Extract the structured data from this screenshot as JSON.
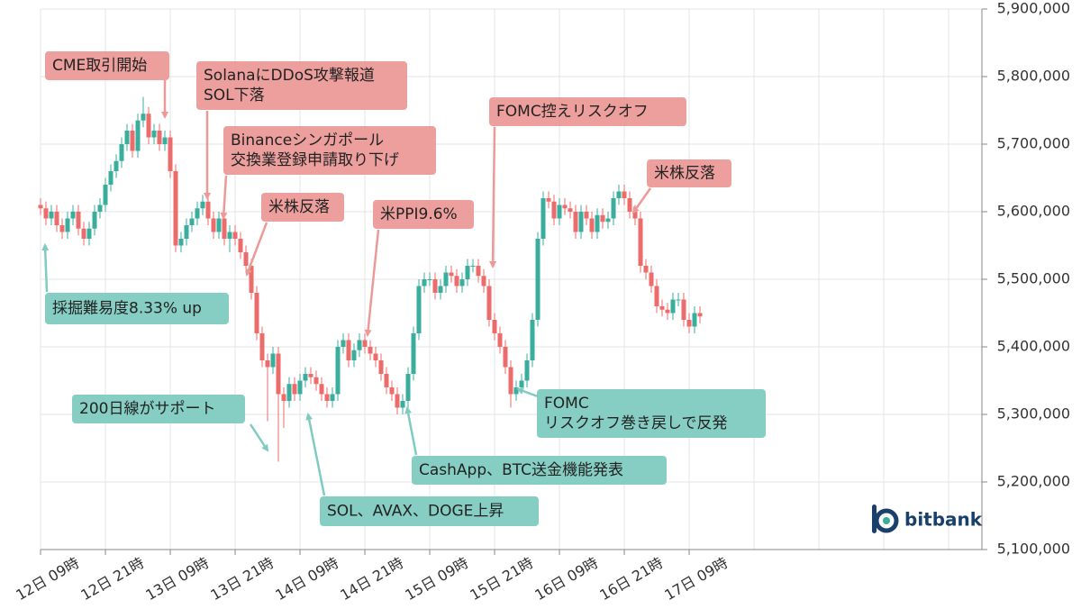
{
  "chart_data": {
    "type": "candlestick",
    "categories": [
      "12日 09時",
      null,
      null,
      null,
      null,
      null,
      null,
      null,
      null,
      null,
      null,
      null,
      "12日 21時",
      null,
      null,
      null,
      null,
      null,
      null,
      null,
      null,
      null,
      null,
      null,
      "13日 09時",
      null,
      null,
      null,
      null,
      null,
      null,
      null,
      null,
      null,
      null,
      null,
      "13日 21時",
      null,
      null,
      null,
      null,
      null,
      null,
      null,
      null,
      null,
      null,
      null,
      "14日 09時",
      null,
      null,
      null,
      null,
      null,
      null,
      null,
      null,
      null,
      null,
      null,
      "14日 21時",
      null,
      null,
      null,
      null,
      null,
      null,
      null,
      null,
      null,
      null,
      null,
      "15日 09時",
      null,
      null,
      null,
      null,
      null,
      null,
      null,
      null,
      null,
      null,
      null,
      "15日 21時",
      null,
      null,
      null,
      null,
      null,
      null,
      null,
      null,
      null,
      null,
      null,
      "16日 09時",
      null,
      null,
      null,
      null,
      null,
      null,
      null,
      null,
      null,
      null,
      null,
      "16日 21時",
      null,
      null,
      null,
      null,
      null,
      null,
      null,
      null,
      null,
      null,
      null,
      "17日 09時",
      null,
      null
    ],
    "open": [
      5610000,
      5605000,
      5590000,
      5600000,
      5580000,
      5570000,
      5590000,
      5600000,
      5575000,
      5560000,
      5575000,
      5600000,
      5610000,
      5640000,
      5660000,
      5675000,
      5700000,
      5720000,
      5690000,
      5735000,
      5745000,
      5710000,
      5720000,
      5700000,
      5710000,
      5660000,
      5550000,
      5560000,
      5580000,
      5590000,
      5605000,
      5615000,
      5590000,
      5570000,
      5590000,
      5560000,
      5570000,
      5560000,
      5540000,
      5520000,
      5480000,
      5420000,
      5380000,
      5370000,
      5390000,
      5330000,
      5320000,
      5345000,
      5330000,
      5350000,
      5360000,
      5355000,
      5345000,
      5330000,
      5320000,
      5330000,
      5400000,
      5410000,
      5380000,
      5395000,
      5410000,
      5400000,
      5390000,
      5380000,
      5360000,
      5340000,
      5330000,
      5310000,
      5320000,
      5360000,
      5420000,
      5490000,
      5500000,
      5500000,
      5480000,
      5490000,
      5510000,
      5505000,
      5490000,
      5500000,
      5520000,
      5520000,
      5505000,
      5490000,
      5440000,
      5420000,
      5400000,
      5370000,
      5330000,
      5340000,
      5350000,
      5380000,
      5440000,
      5560000,
      5620000,
      5615000,
      5590000,
      5610000,
      5605000,
      5600000,
      5570000,
      5600000,
      5590000,
      5570000,
      5595000,
      5585000,
      5590000,
      5620000,
      5630000,
      5620000,
      5600000,
      5590000,
      5520000,
      5510000,
      5490000,
      5460000,
      5455000,
      5450000,
      5470000,
      5470000,
      5440000,
      5430000,
      5450000
    ],
    "high": [
      5620000,
      5615000,
      5610000,
      5610000,
      5590000,
      5600000,
      5610000,
      5610000,
      5585000,
      5585000,
      5610000,
      5620000,
      5650000,
      5670000,
      5685000,
      5710000,
      5730000,
      5730000,
      5745000,
      5770000,
      5755000,
      5730000,
      5730000,
      5720000,
      5720000,
      5670000,
      5570000,
      5590000,
      5600000,
      5615000,
      5625000,
      5625000,
      5600000,
      5600000,
      5600000,
      5580000,
      5580000,
      5570000,
      5550000,
      5530000,
      5490000,
      5430000,
      5390000,
      5400000,
      5400000,
      5340000,
      5355000,
      5355000,
      5360000,
      5370000,
      5370000,
      5365000,
      5355000,
      5340000,
      5340000,
      5410000,
      5420000,
      5420000,
      5405000,
      5420000,
      5420000,
      5410000,
      5400000,
      5390000,
      5370000,
      5350000,
      5340000,
      5330000,
      5370000,
      5430000,
      5500000,
      5510000,
      5510000,
      5510000,
      5500000,
      5520000,
      5520000,
      5515000,
      5510000,
      5530000,
      5530000,
      5530000,
      5515000,
      5500000,
      5450000,
      5430000,
      5410000,
      5380000,
      5350000,
      5360000,
      5390000,
      5450000,
      5570000,
      5630000,
      5630000,
      5625000,
      5620000,
      5620000,
      5615000,
      5610000,
      5610000,
      5610000,
      5600000,
      5605000,
      5605000,
      5600000,
      5630000,
      5640000,
      5640000,
      5630000,
      5610000,
      5600000,
      5530000,
      5520000,
      5500000,
      5470000,
      5465000,
      5480000,
      5480000,
      5480000,
      5450000,
      5460000,
      5460000
    ],
    "low": [
      5595000,
      5580000,
      5580000,
      5570000,
      5560000,
      5560000,
      5580000,
      5565000,
      5550000,
      5550000,
      5565000,
      5590000,
      5600000,
      5630000,
      5650000,
      5665000,
      5690000,
      5680000,
      5680000,
      5725000,
      5700000,
      5700000,
      5690000,
      5690000,
      5650000,
      5540000,
      5540000,
      5550000,
      5570000,
      5580000,
      5595000,
      5580000,
      5560000,
      5560000,
      5550000,
      5540000,
      5550000,
      5530000,
      5510000,
      5470000,
      5410000,
      5370000,
      5290000,
      5360000,
      5230000,
      5280000,
      5310000,
      5320000,
      5320000,
      5340000,
      5345000,
      5335000,
      5320000,
      5310000,
      5310000,
      5320000,
      5390000,
      5370000,
      5370000,
      5385000,
      5390000,
      5380000,
      5370000,
      5350000,
      5330000,
      5320000,
      5300000,
      5300000,
      5310000,
      5350000,
      5410000,
      5480000,
      5490000,
      5470000,
      5470000,
      5480000,
      5495000,
      5480000,
      5480000,
      5490000,
      5510000,
      5495000,
      5480000,
      5430000,
      5410000,
      5390000,
      5360000,
      5310000,
      5320000,
      5330000,
      5340000,
      5370000,
      5430000,
      5550000,
      5605000,
      5580000,
      5580000,
      5595000,
      5590000,
      5560000,
      5560000,
      5580000,
      5560000,
      5560000,
      5575000,
      5575000,
      5580000,
      5610000,
      5610000,
      5590000,
      5580000,
      5510000,
      5500000,
      5480000,
      5450000,
      5445000,
      5440000,
      5440000,
      5460000,
      5430000,
      5420000,
      5420000,
      5435000
    ],
    "close": [
      5605000,
      5590000,
      5600000,
      5580000,
      5570000,
      5590000,
      5600000,
      5575000,
      5560000,
      5575000,
      5600000,
      5610000,
      5640000,
      5660000,
      5675000,
      5700000,
      5720000,
      5690000,
      5735000,
      5745000,
      5710000,
      5720000,
      5700000,
      5710000,
      5660000,
      5550000,
      5560000,
      5580000,
      5590000,
      5605000,
      5615000,
      5590000,
      5570000,
      5590000,
      5560000,
      5570000,
      5560000,
      5540000,
      5520000,
      5480000,
      5420000,
      5380000,
      5370000,
      5390000,
      5330000,
      5320000,
      5345000,
      5330000,
      5350000,
      5360000,
      5355000,
      5345000,
      5330000,
      5320000,
      5330000,
      5400000,
      5410000,
      5380000,
      5395000,
      5410000,
      5400000,
      5390000,
      5380000,
      5360000,
      5340000,
      5330000,
      5310000,
      5320000,
      5360000,
      5420000,
      5490000,
      5500000,
      5500000,
      5480000,
      5490000,
      5510000,
      5505000,
      5490000,
      5500000,
      5520000,
      5520000,
      5505000,
      5490000,
      5440000,
      5420000,
      5400000,
      5370000,
      5330000,
      5340000,
      5350000,
      5380000,
      5440000,
      5560000,
      5620000,
      5615000,
      5590000,
      5610000,
      5605000,
      5600000,
      5570000,
      5600000,
      5590000,
      5570000,
      5595000,
      5585000,
      5590000,
      5620000,
      5630000,
      5620000,
      5600000,
      5590000,
      5520000,
      5510000,
      5490000,
      5460000,
      5455000,
      5450000,
      5470000,
      5470000,
      5440000,
      5430000,
      5450000,
      5445000
    ],
    "up_color": "#3aae9c",
    "down_color": "#ec6b6b",
    "ylim": [
      5100000,
      5900000
    ],
    "yticks": [
      {
        "value": 5100000,
        "label": "5,100,000"
      },
      {
        "value": 5200000,
        "label": "5,200,000"
      },
      {
        "value": 5300000,
        "label": "5,300,000"
      },
      {
        "value": 5400000,
        "label": "5,400,000"
      },
      {
        "value": 5500000,
        "label": "5,500,000"
      },
      {
        "value": 5600000,
        "label": "5,600,000"
      },
      {
        "value": 5700000,
        "label": "5,700,000"
      },
      {
        "value": 5800000,
        "label": "5,800,000"
      },
      {
        "value": 5900000,
        "label": "5,900,000"
      }
    ],
    "grid": true,
    "annotations": [
      {
        "lines": [
          "CME取引開始"
        ],
        "color": "#eb9a98"
      },
      {
        "lines": [
          "SolanaにDDoS攻撃報道",
          "SOL下落"
        ],
        "color": "#eb9a98"
      },
      {
        "lines": [
          "Binanceシンガポール",
          "交換業登録申請取り下げ"
        ],
        "color": "#eb9a98"
      },
      {
        "lines": [
          "米株反落"
        ],
        "color": "#eb9a98"
      },
      {
        "lines": [
          "米PPI9.6%"
        ],
        "color": "#eb9a98"
      },
      {
        "lines": [
          "FOMC控えリスクオフ"
        ],
        "color": "#eb9a98"
      },
      {
        "lines": [
          "米株反落"
        ],
        "color": "#eb9a98"
      },
      {
        "lines": [
          "採掘難易度8.33% up"
        ],
        "color": "#80cbc1"
      },
      {
        "lines": [
          "200日線がサポート"
        ],
        "color": "#80cbc1"
      },
      {
        "lines": [
          "SOL、AVAX、DOGE上昇"
        ],
        "color": "#80cbc1"
      },
      {
        "lines": [
          "CashApp、BTC送金機能発表"
        ],
        "color": "#80cbc1"
      },
      {
        "lines": [
          "FOMC",
          "リスクオフ巻き戻しで反発"
        ],
        "color": "#80cbc1"
      }
    ],
    "logo": "bitbank"
  }
}
